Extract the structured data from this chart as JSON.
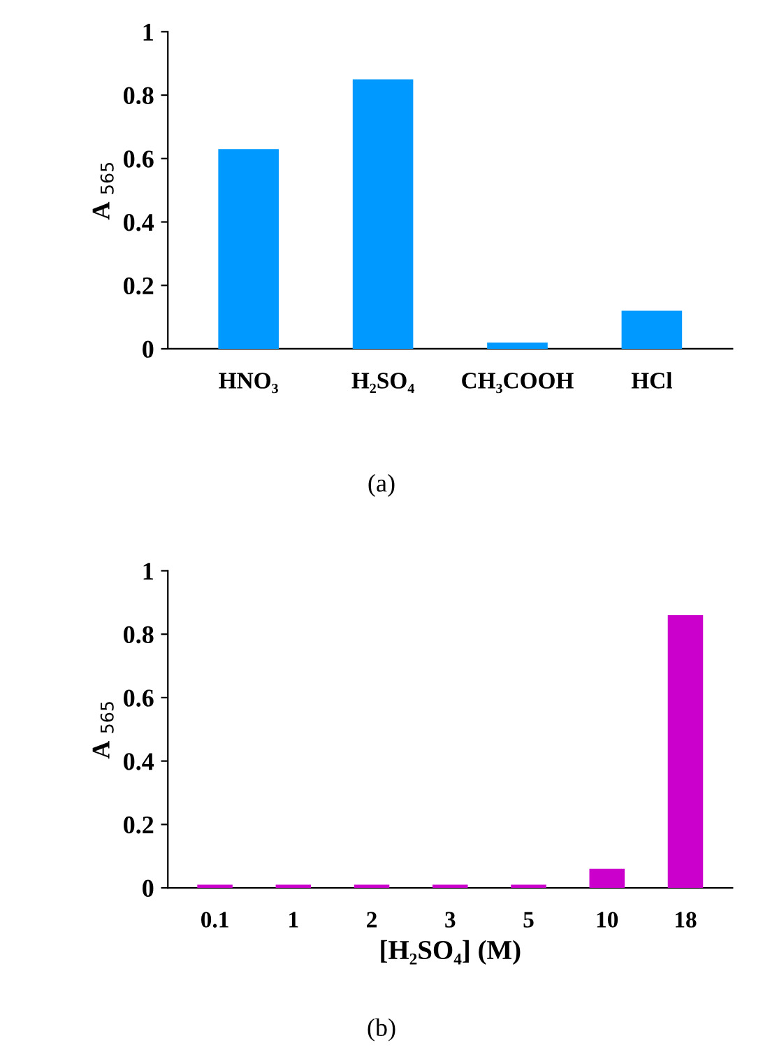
{
  "chart_data": [
    {
      "type": "bar",
      "ylabel": "A $_{565}$",
      "categories": [
        "HNO₃",
        "H₂SO₄",
        "CH₃COOH",
        "HCl"
      ],
      "values": [
        0.63,
        0.85,
        0.02,
        0.12
      ],
      "color": "#0099ff",
      "ylim": [
        0,
        1
      ],
      "yticks": [
        0,
        0.2,
        0.4,
        0.6,
        0.8,
        1
      ],
      "grid": false,
      "annotations": [
        "(a)"
      ]
    },
    {
      "type": "bar",
      "ylabel": "A $_{565}$",
      "xlabel": "[H₂SO₄] (M)",
      "categories": [
        "0.1",
        "1",
        "2",
        "3",
        "5",
        "10",
        "18"
      ],
      "values": [
        0.01,
        0.01,
        0.01,
        0.01,
        0.01,
        0.06,
        0.86
      ],
      "color": "#cc00cc",
      "ylim": [
        0,
        1
      ],
      "yticks": [
        0,
        0.2,
        0.4,
        0.6,
        0.8,
        1
      ],
      "grid": false,
      "annotations": [
        "(b)"
      ]
    }
  ]
}
